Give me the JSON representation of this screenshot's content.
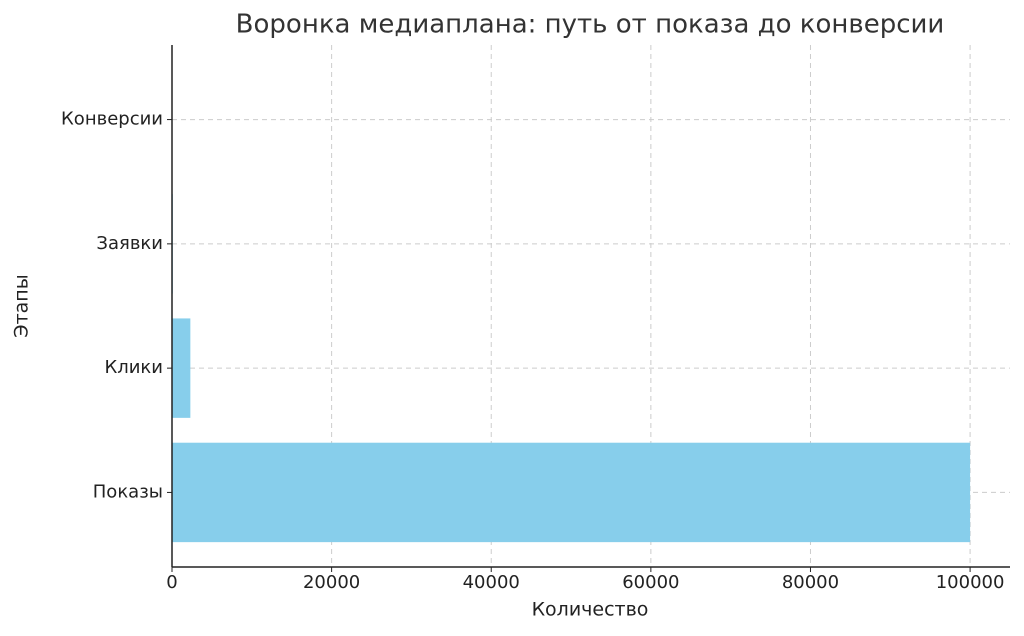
{
  "chart_data": {
    "type": "barh",
    "title": "Воронка медиаплана: путь от показа до конверсии",
    "xlabel": "Количество",
    "ylabel": "Этапы",
    "categories": [
      "Показы",
      "Клики",
      "Заявки",
      "Конверсии"
    ],
    "values": [
      100000,
      2300,
      100,
      20
    ],
    "color": "#87ceeb",
    "xlim": [
      0,
      105000
    ],
    "xticks": [
      0,
      20000,
      40000,
      60000,
      80000,
      100000
    ],
    "grid": true
  }
}
